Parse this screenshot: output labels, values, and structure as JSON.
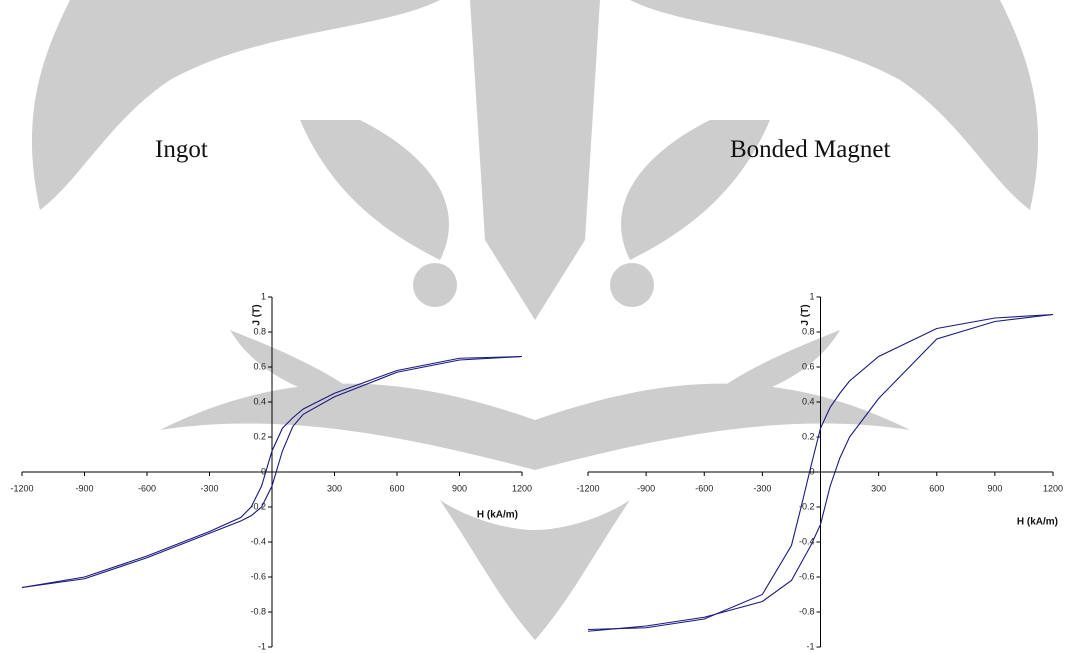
{
  "chart_data": [
    {
      "type": "line",
      "title": "Ingot",
      "x_label": "H (kA/m)",
      "y_label": "J (T)",
      "x": [
        -1200,
        -900,
        -600,
        -300,
        -150,
        -100,
        -50,
        0,
        50,
        100,
        150,
        300,
        600,
        900,
        1200
      ],
      "series": [
        {
          "color": "#1a1a80",
          "values": [
            -0.66,
            -0.6,
            -0.48,
            -0.34,
            -0.26,
            -0.2,
            -0.08,
            0.12,
            0.25,
            0.31,
            0.36,
            0.45,
            0.58,
            0.65,
            0.66
          ]
        },
        {
          "color": "#1a1a80",
          "values": [
            -0.66,
            -0.61,
            -0.49,
            -0.35,
            -0.28,
            -0.25,
            -0.2,
            -0.08,
            0.12,
            0.26,
            0.33,
            0.43,
            0.57,
            0.64,
            0.66
          ]
        }
      ],
      "xlim": [
        -1200,
        1200
      ],
      "xticks": [
        -1200,
        -900,
        -600,
        -300,
        300,
        600,
        900,
        1200
      ],
      "ylim": [
        -1,
        1
      ],
      "yticks": [
        1,
        0.8,
        0.6,
        0.4,
        0.2,
        0,
        -0.2,
        -0.4,
        -0.6,
        -0.8,
        -1
      ],
      "grid": false
    },
    {
      "type": "line",
      "title": "Bonded Magnet",
      "x_label": "H (kA/m)",
      "y_label": "J (T)",
      "x": [
        -1200,
        -900,
        -600,
        -300,
        -150,
        -100,
        -50,
        0,
        50,
        100,
        150,
        300,
        600,
        900,
        1200
      ],
      "series": [
        {
          "color": "#1a1a80",
          "values": [
            -0.9,
            -0.89,
            -0.84,
            -0.7,
            -0.42,
            -0.2,
            0.03,
            0.25,
            0.37,
            0.45,
            0.52,
            0.66,
            0.82,
            0.88,
            0.9
          ]
        },
        {
          "color": "#1a1a80",
          "values": [
            -0.91,
            -0.88,
            -0.83,
            -0.74,
            -0.62,
            -0.52,
            -0.42,
            -0.3,
            -0.08,
            0.08,
            0.2,
            0.42,
            0.76,
            0.86,
            0.9
          ]
        }
      ],
      "xlim": [
        -1200,
        1200
      ],
      "xticks": [
        -1200,
        -900,
        -600,
        -300,
        300,
        600,
        900,
        1200
      ],
      "ylim": [
        -1,
        1
      ],
      "yticks": [
        1,
        0.8,
        0.6,
        0.4,
        0.2,
        0,
        -0.2,
        -0.4,
        -0.6,
        -0.8,
        -1
      ],
      "grid": false
    }
  ]
}
